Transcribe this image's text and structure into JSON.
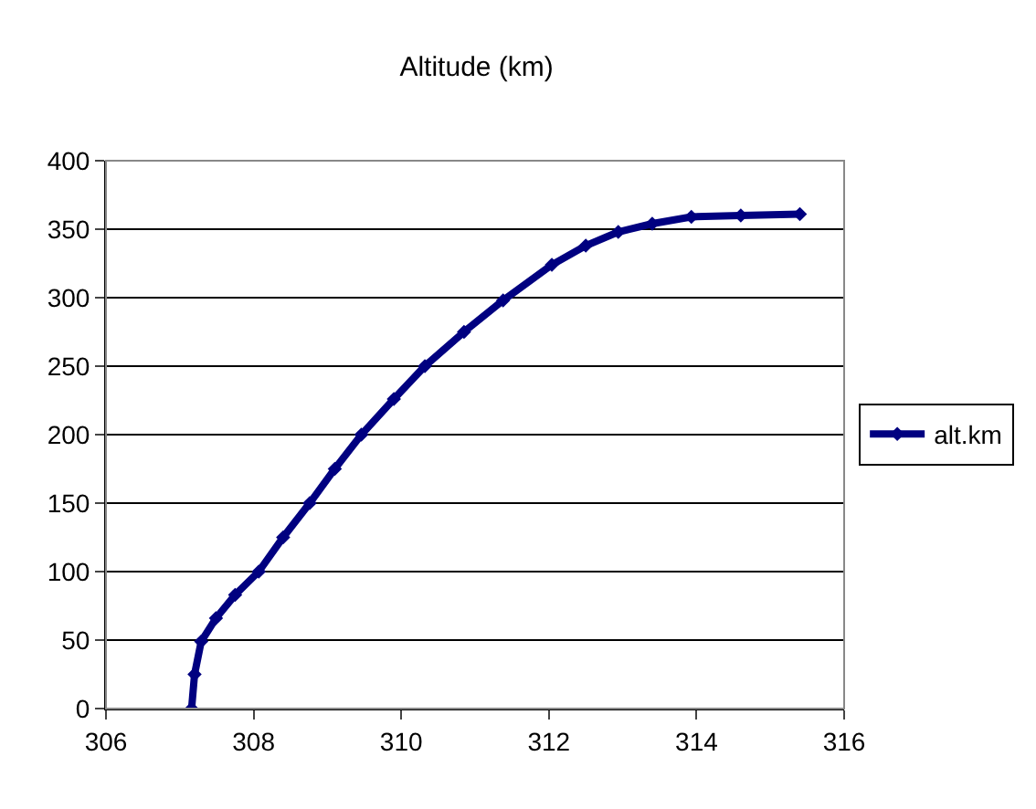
{
  "chart_data": {
    "type": "line",
    "title": "Altitude (km)",
    "series": [
      {
        "name": "alt.km",
        "color": "#000080",
        "x": [
          307.16,
          307.2,
          307.29,
          307.49,
          307.75,
          308.07,
          308.4,
          308.76,
          309.1,
          309.46,
          309.9,
          310.32,
          310.85,
          311.38,
          312.04,
          312.5,
          312.94,
          313.4,
          313.93,
          314.6,
          315.4
        ],
        "values": [
          0,
          25,
          49,
          66,
          83,
          100,
          125,
          150,
          175,
          200,
          226,
          250,
          275,
          298,
          324,
          338,
          348,
          354,
          359,
          360,
          361
        ]
      }
    ],
    "xlim": [
      306,
      316
    ],
    "xticks": [
      306,
      308,
      310,
      312,
      314,
      316
    ],
    "ylim": [
      0,
      400
    ],
    "yticks": [
      0,
      50,
      100,
      150,
      200,
      250,
      300,
      350,
      400
    ],
    "grid": "y",
    "legend": "right",
    "marker": "diamond",
    "line_style": "solid"
  }
}
